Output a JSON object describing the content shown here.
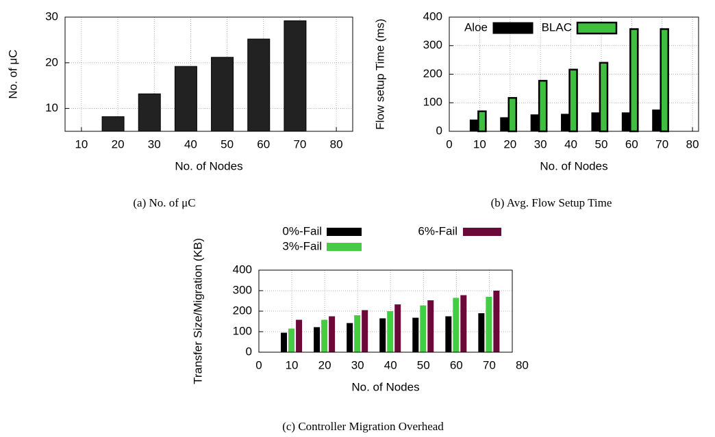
{
  "chart_data": [
    {
      "type": "bar",
      "caption": "(a) No. of μC",
      "xlabel": "No. of Nodes",
      "ylabel": "No. of μC",
      "x": [
        20,
        30,
        40,
        50,
        60,
        70
      ],
      "series": [
        {
          "color": "#222222",
          "values": [
            8.2,
            13.2,
            19.2,
            21.2,
            25.2,
            29.2
          ]
        }
      ],
      "xlim": [
        5.5,
        84.5
      ],
      "xticks": [
        10,
        20,
        30,
        40,
        50,
        60,
        70,
        80
      ],
      "ylim": [
        5,
        30
      ],
      "yticks": [
        10,
        20,
        30
      ],
      "grid": true
    },
    {
      "type": "bar",
      "caption": "(b) Avg. Flow Setup Time",
      "xlabel": "No. of Nodes",
      "ylabel": "Flow setup Time (ms)",
      "x": [
        10,
        20,
        30,
        40,
        50,
        60,
        70
      ],
      "series": [
        {
          "name": "Aloe",
          "color": "#000000",
          "values": [
            40,
            48,
            58,
            60,
            65,
            65,
            75
          ]
        },
        {
          "name": "BLAC",
          "color": "#3fbf3f",
          "values": [
            70,
            117,
            177,
            216,
            240,
            358,
            358
          ]
        }
      ],
      "xlim": [
        0,
        82
      ],
      "xticks": [
        0,
        10,
        20,
        30,
        40,
        50,
        60,
        70,
        80
      ],
      "ylim": [
        0,
        400
      ],
      "yticks": [
        0,
        100,
        200,
        300,
        400
      ],
      "grid": true,
      "legend": "top"
    },
    {
      "type": "bar",
      "caption": "(c) Controller Migration Overhead",
      "xlabel": "No. of Nodes",
      "ylabel": "Transfer Size/Migration (KB)",
      "x": [
        10,
        20,
        30,
        40,
        50,
        60,
        70
      ],
      "series": [
        {
          "name": "0%-Fail",
          "color": "#000000",
          "values": [
            95,
            122,
            142,
            165,
            168,
            175,
            190
          ]
        },
        {
          "name": "3%-Fail",
          "color": "#44cc44",
          "values": [
            115,
            158,
            180,
            200,
            228,
            265,
            270
          ]
        },
        {
          "name": "6%-Fail",
          "color": "#6b0a3a",
          "values": [
            158,
            175,
            205,
            233,
            253,
            278,
            300
          ]
        }
      ],
      "xlim": [
        0,
        77
      ],
      "xticks": [
        0,
        10,
        20,
        30,
        40,
        50,
        60,
        70,
        80
      ],
      "ylim": [
        0,
        400
      ],
      "yticks": [
        0,
        100,
        200,
        300,
        400
      ],
      "grid": true,
      "legend": "above"
    }
  ]
}
